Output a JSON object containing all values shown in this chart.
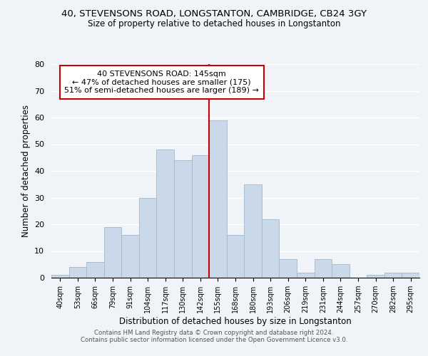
{
  "title1": "40, STEVENSONS ROAD, LONGSTANTON, CAMBRIDGE, CB24 3GY",
  "title2": "Size of property relative to detached houses in Longstanton",
  "xlabel": "Distribution of detached houses by size in Longstanton",
  "ylabel": "Number of detached properties",
  "bar_labels": [
    "40sqm",
    "53sqm",
    "66sqm",
    "79sqm",
    "91sqm",
    "104sqm",
    "117sqm",
    "130sqm",
    "142sqm",
    "155sqm",
    "168sqm",
    "180sqm",
    "193sqm",
    "206sqm",
    "219sqm",
    "231sqm",
    "244sqm",
    "257sqm",
    "270sqm",
    "282sqm",
    "295sqm"
  ],
  "bar_values": [
    1,
    4,
    6,
    19,
    16,
    30,
    48,
    44,
    46,
    59,
    16,
    35,
    22,
    7,
    2,
    7,
    5,
    0,
    1,
    2,
    2
  ],
  "bar_color": "#c9d9ea",
  "bar_edgecolor": "#aabdce",
  "vline_x": 8.5,
  "vline_color": "#cc0000",
  "annotation_text": "40 STEVENSONS ROAD: 145sqm\n← 47% of detached houses are smaller (175)\n51% of semi-detached houses are larger (189) →",
  "annotation_box_edgecolor": "#cc0000",
  "ylim": [
    0,
    80
  ],
  "yticks": [
    0,
    10,
    20,
    30,
    40,
    50,
    60,
    70,
    80
  ],
  "footer1": "Contains HM Land Registry data © Crown copyright and database right 2024.",
  "footer2": "Contains public sector information licensed under the Open Government Licence v3.0.",
  "bg_color": "#f0f4f8",
  "plot_bg_color": "#f0f4f8"
}
